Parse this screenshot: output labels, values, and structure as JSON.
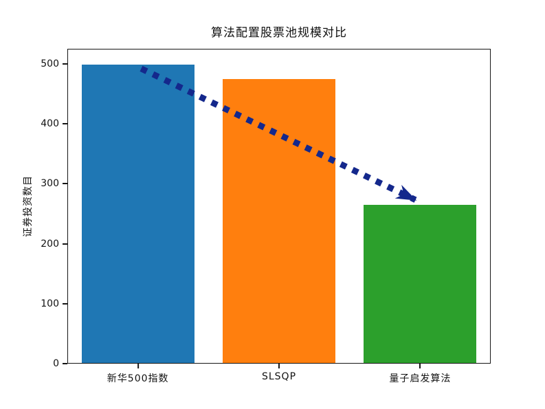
{
  "chart_data": {
    "type": "bar",
    "title": "算法配置股票池规模对比",
    "xlabel": "",
    "ylabel": "证券投资数目",
    "categories": [
      "新华500指数",
      "SLSQP",
      "量子启发算法"
    ],
    "values": [
      500,
      476,
      265
    ],
    "bar_colors": [
      "#1f77b4",
      "#ff7f0e",
      "#2ca02c"
    ],
    "ylim": [
      0,
      525
    ],
    "yticks": [
      0,
      100,
      200,
      300,
      400,
      500
    ],
    "grid": false,
    "legend_position": "none",
    "background_color": "#ffffff",
    "spine_color": "#151515",
    "annotation_arrow": {
      "description": "dotted navy arrow from top of first bar down to top of third bar",
      "style": "dotted",
      "color": "#14288c",
      "from": {
        "x": 0.02,
        "y": 493
      },
      "to": {
        "x": 1.97,
        "y": 273
      }
    }
  }
}
